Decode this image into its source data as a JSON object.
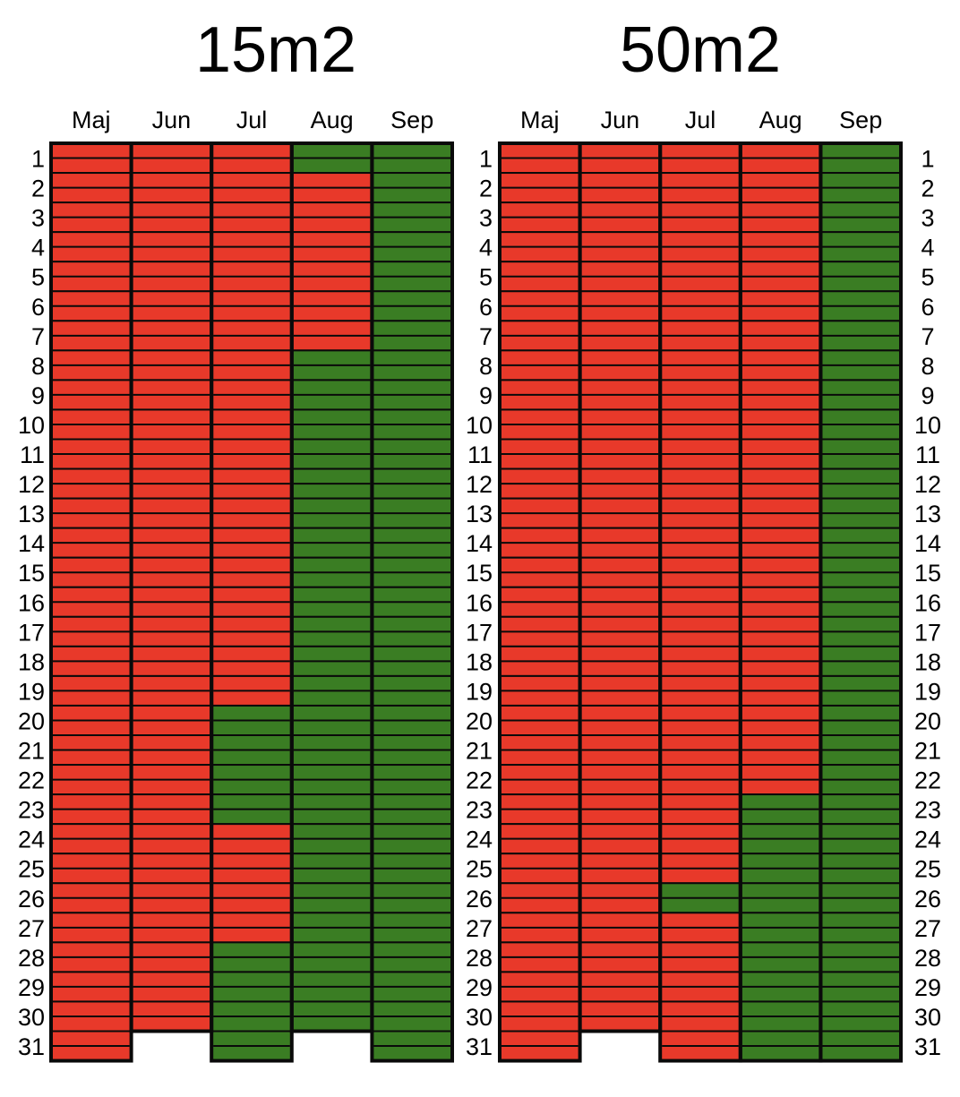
{
  "colors": {
    "red": "#e8392a",
    "green": "#3a7d23",
    "border": "#0a0a0a"
  },
  "chart_data": [
    {
      "type": "heatmap",
      "title": "15m2",
      "columns": [
        "Maj",
        "Jun",
        "Jul",
        "Aug",
        "Sep"
      ],
      "rows": [
        "1",
        "2",
        "3",
        "4",
        "5",
        "6",
        "7",
        "8",
        "9",
        "10",
        "11",
        "12",
        "13",
        "14",
        "15",
        "16",
        "17",
        "18",
        "19",
        "20",
        "21",
        "22",
        "23",
        "24",
        "25",
        "26",
        "27",
        "28",
        "29",
        "30",
        "31"
      ],
      "days_in_month": [
        31,
        30,
        31,
        30,
        31
      ],
      "legend": {
        "R": "red",
        "G": "green"
      },
      "values": [
        "RRRRRRRRRRRRRRRRRRRRRRRRRRRRRRR",
        "RRRRRRRRRRRRRRRRRRRRRRRRRRRRRR",
        "RRRRRRRRRRRRRRRRRRRGGGGRRRRGGGG",
        "GRRRRRRGGGGGGGGGGGGGGGGGGGGGGG",
        "GGGGGGGGGGGGGGGGGGGGGGGGGGGGGGG"
      ],
      "label_sides": [
        "left"
      ]
    },
    {
      "type": "heatmap",
      "title": "50m2",
      "columns": [
        "Maj",
        "Jun",
        "Jul",
        "Aug",
        "Sep"
      ],
      "rows": [
        "1",
        "2",
        "3",
        "4",
        "5",
        "6",
        "7",
        "8",
        "9",
        "10",
        "11",
        "12",
        "13",
        "14",
        "15",
        "16",
        "17",
        "18",
        "19",
        "20",
        "21",
        "22",
        "23",
        "24",
        "25",
        "26",
        "27",
        "28",
        "29",
        "30",
        "31"
      ],
      "days_in_month": [
        31,
        30,
        31,
        31,
        31
      ],
      "legend": {
        "R": "red",
        "G": "green"
      },
      "values": [
        "RRRRRRRRRRRRRRRRRRRRRRRRRRRRRRR",
        "RRRRRRRRRRRRRRRRRRRRRRRRRRRRRR",
        "RRRRRRRRRRRRRRRRRRRRRRRRRGRRRRR",
        "RRRRRRRRRRRRRRRRRRRRRRGGGGGGGGG",
        "GGGGGGGGGGGGGGGGGGGGGGGGGGGGGGG"
      ],
      "label_sides": [
        "left",
        "right"
      ]
    }
  ]
}
